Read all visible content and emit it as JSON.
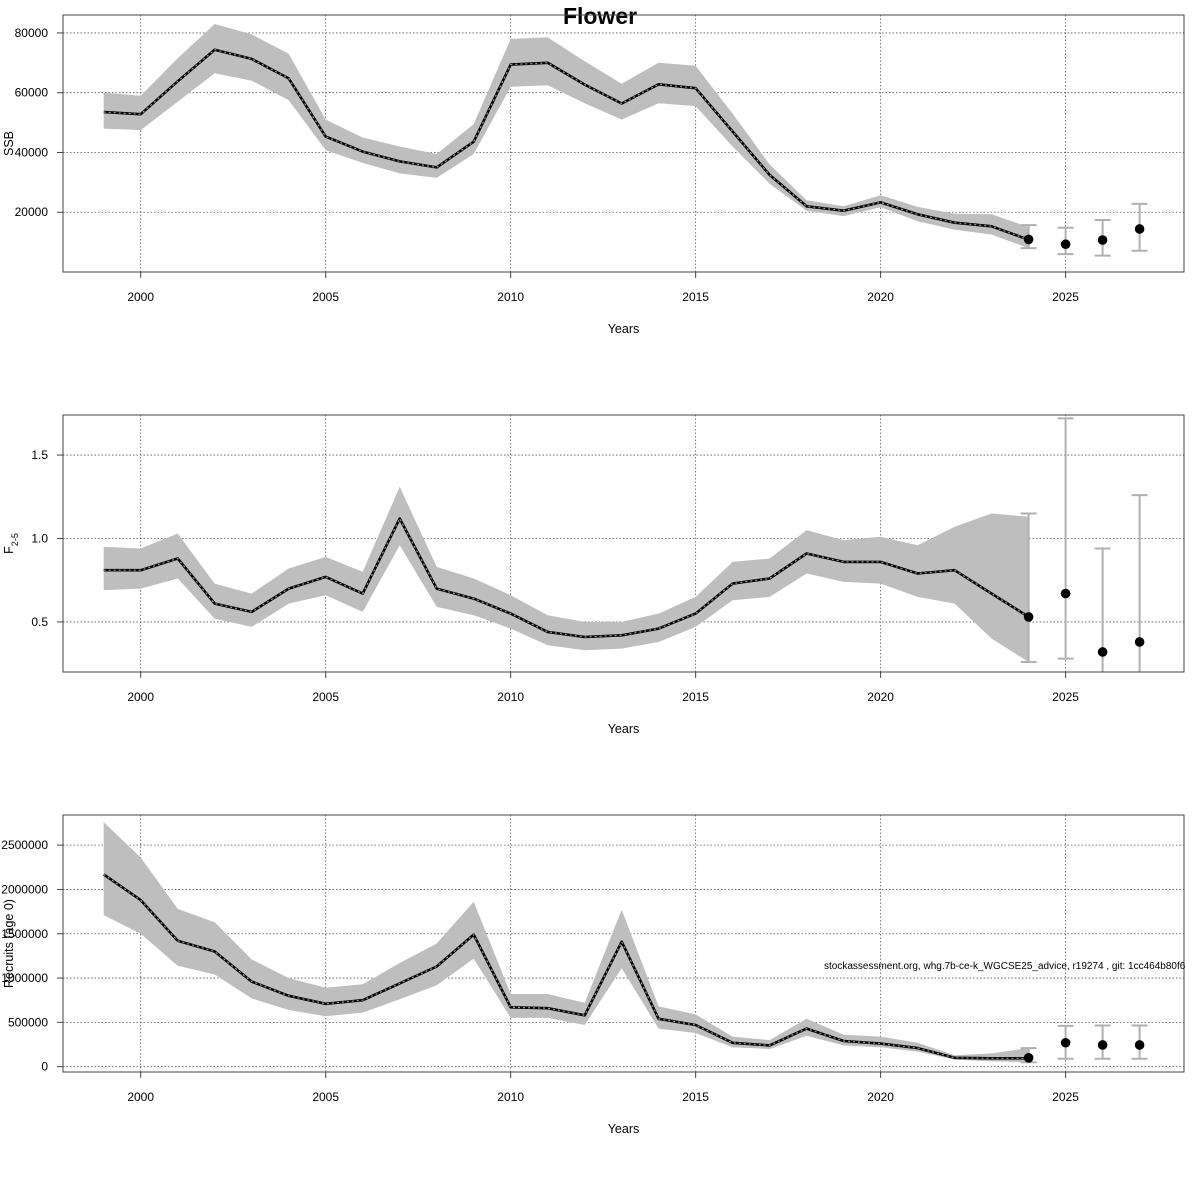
{
  "page": {
    "title": "Flower"
  },
  "footnote": "stockassessment.org, whg.7b-ce-k_WGCSE25_advice, r19274 , git: 1cc464b80f6",
  "chart_data": [
    {
      "type": "line",
      "name": "ssb",
      "xlabel": "Years",
      "ylabel": "SSB",
      "xlim": [
        1997.9,
        2028.2
      ],
      "ylim": [
        0,
        86000
      ],
      "xticks": [
        2000,
        2005,
        2010,
        2015,
        2020,
        2025
      ],
      "yticks": [
        20000,
        40000,
        60000,
        80000
      ],
      "ytick_labels": [
        "20000",
        "40000",
        "60000",
        "80000"
      ],
      "grid": true,
      "x": [
        1999,
        2000,
        2001,
        2002,
        2003,
        2004,
        2005,
        2006,
        2007,
        2008,
        2009,
        2010,
        2011,
        2012,
        2013,
        2014,
        2015,
        2016,
        2017,
        2018,
        2019,
        2020,
        2021,
        2022,
        2023,
        2024
      ],
      "estimate": [
        53500,
        52800,
        63800,
        74400,
        71300,
        64800,
        45300,
        40300,
        37000,
        35000,
        43600,
        69400,
        70000,
        62700,
        56400,
        62800,
        61500,
        47000,
        32500,
        22000,
        20500,
        23300,
        19300,
        16500,
        15300,
        10800
      ],
      "lower": [
        48000,
        47500,
        57000,
        66500,
        64000,
        57500,
        40800,
        36500,
        33000,
        31500,
        39500,
        62000,
        62500,
        56500,
        51000,
        56500,
        55500,
        42000,
        29500,
        20500,
        18700,
        21700,
        17000,
        14200,
        12500,
        8000
      ],
      "upper": [
        60000,
        59000,
        71500,
        83000,
        79500,
        73000,
        51000,
        45000,
        42000,
        39500,
        49500,
        78000,
        78500,
        70500,
        63000,
        70000,
        69000,
        53000,
        36000,
        24000,
        22000,
        25700,
        21800,
        19500,
        19300,
        15000
      ],
      "forecast": [
        {
          "x": 2024,
          "y": 10900,
          "low": 8000,
          "high": 15700
        },
        {
          "x": 2025,
          "y": 9300,
          "low": 6000,
          "high": 14800
        },
        {
          "x": 2026,
          "y": 10700,
          "low": 5500,
          "high": 17400
        },
        {
          "x": 2027,
          "y": 14400,
          "low": 7100,
          "high": 22800
        }
      ]
    },
    {
      "type": "line",
      "name": "fishing-mortality",
      "xlabel": "Years",
      "ylabel": "F",
      "ylabel_sub": "2-5",
      "xlim": [
        1997.9,
        2028.2
      ],
      "ylim": [
        0.2,
        1.74
      ],
      "xticks": [
        2000,
        2005,
        2010,
        2015,
        2020,
        2025
      ],
      "yticks": [
        0.5,
        1.0,
        1.5
      ],
      "ytick_labels": [
        "0.5",
        "1.0",
        "1.5"
      ],
      "grid": true,
      "x": [
        1999,
        2000,
        2001,
        2002,
        2003,
        2004,
        2005,
        2006,
        2007,
        2008,
        2009,
        2010,
        2011,
        2012,
        2013,
        2014,
        2015,
        2016,
        2017,
        2018,
        2019,
        2020,
        2021,
        2022,
        2023,
        2024
      ],
      "estimate": [
        0.81,
        0.81,
        0.88,
        0.61,
        0.56,
        0.7,
        0.77,
        0.67,
        1.12,
        0.7,
        0.64,
        0.55,
        0.44,
        0.41,
        0.42,
        0.46,
        0.55,
        0.73,
        0.76,
        0.91,
        0.86,
        0.86,
        0.79,
        0.81,
        0.67,
        0.53
      ],
      "lower": [
        0.69,
        0.7,
        0.76,
        0.52,
        0.47,
        0.61,
        0.66,
        0.56,
        0.96,
        0.59,
        0.54,
        0.46,
        0.36,
        0.33,
        0.34,
        0.38,
        0.47,
        0.63,
        0.65,
        0.79,
        0.74,
        0.73,
        0.65,
        0.61,
        0.4,
        0.26
      ],
      "upper": [
        0.95,
        0.94,
        1.03,
        0.73,
        0.67,
        0.82,
        0.89,
        0.8,
        1.31,
        0.83,
        0.76,
        0.66,
        0.54,
        0.5,
        0.5,
        0.55,
        0.65,
        0.86,
        0.88,
        1.05,
        0.99,
        1.01,
        0.96,
        1.07,
        1.15,
        1.13
      ],
      "forecast": [
        {
          "x": 2024,
          "y": 0.53,
          "low": 0.26,
          "high": 1.15
        },
        {
          "x": 2025,
          "y": 0.67,
          "low": 0.28,
          "high": 1.72
        },
        {
          "x": 2026,
          "y": 0.32,
          "low": 0.11,
          "high": 0.94
        },
        {
          "x": 2027,
          "y": 0.38,
          "low": 0.12,
          "high": 1.26
        }
      ]
    },
    {
      "type": "line",
      "name": "recruitment",
      "xlabel": "Years",
      "ylabel": "Recruits (age 0)",
      "xlim": [
        1997.9,
        2028.2
      ],
      "ylim": [
        -60000,
        2840000
      ],
      "xticks": [
        2000,
        2005,
        2010,
        2015,
        2020,
        2025
      ],
      "yticks": [
        0,
        500000,
        1000000,
        1500000,
        2000000,
        2500000
      ],
      "ytick_labels": [
        "0",
        "500000",
        "1000000",
        "1500000",
        "2000000",
        "2500000"
      ],
      "grid": true,
      "x": [
        1999,
        2000,
        2001,
        2002,
        2003,
        2004,
        2005,
        2006,
        2007,
        2008,
        2009,
        2010,
        2011,
        2012,
        2013,
        2014,
        2015,
        2016,
        2017,
        2018,
        2019,
        2020,
        2021,
        2022,
        2023,
        2024
      ],
      "estimate": [
        2170000,
        1880000,
        1420000,
        1300000,
        960000,
        800000,
        710000,
        750000,
        940000,
        1130000,
        1490000,
        670000,
        660000,
        580000,
        1410000,
        540000,
        470000,
        270000,
        240000,
        430000,
        290000,
        260000,
        210000,
        100000,
        95000,
        95000
      ],
      "lower": [
        1710000,
        1500000,
        1140000,
        1040000,
        770000,
        640000,
        570000,
        610000,
        760000,
        920000,
        1220000,
        550000,
        550000,
        470000,
        1110000,
        430000,
        380000,
        220000,
        200000,
        350000,
        240000,
        220000,
        170000,
        80000,
        60000,
        50000
      ],
      "upper": [
        2760000,
        2360000,
        1780000,
        1630000,
        1210000,
        1000000,
        890000,
        930000,
        1170000,
        1390000,
        1860000,
        820000,
        820000,
        720000,
        1770000,
        680000,
        590000,
        340000,
        300000,
        540000,
        360000,
        340000,
        270000,
        130000,
        150000,
        210000
      ],
      "forecast": [
        {
          "x": 2024,
          "y": 100000,
          "low": 50000,
          "high": 210000
        },
        {
          "x": 2025,
          "y": 270000,
          "low": 90000,
          "high": 460000
        },
        {
          "x": 2026,
          "y": 245000,
          "low": 90000,
          "high": 465000
        },
        {
          "x": 2027,
          "y": 245000,
          "low": 90000,
          "high": 465000
        }
      ]
    }
  ]
}
